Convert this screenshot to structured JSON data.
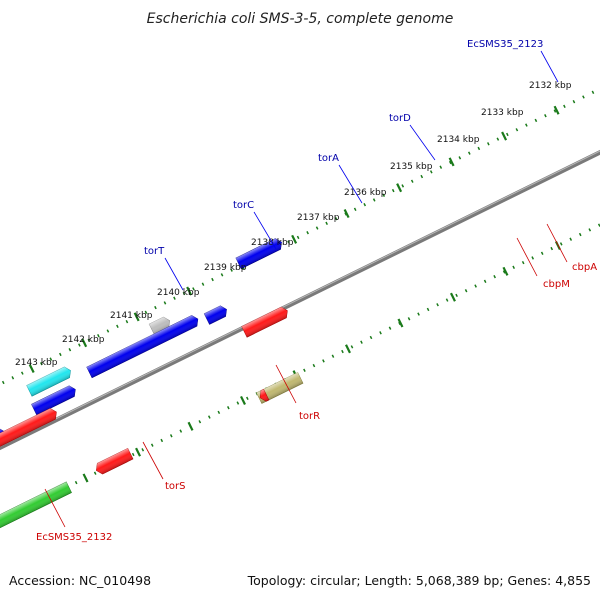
{
  "title": "Escherichia coli SMS-3-5, complete genome",
  "footer": {
    "accession": "Accession: NC_010498",
    "summary": "Topology: circular; Length: 5,068,389 bp; Genes: 4,855"
  },
  "colors": {
    "red": "#ff1a1a",
    "blue": "#0000ee",
    "cyan": "#22e6ee",
    "teal": "#10b8c0",
    "green": "#33cc33",
    "gray": "#bdbdbd",
    "khaki": "#c0b870",
    "backbone": "#7a7a7a",
    "tick": "#1a7a1a",
    "plus_label": "#0000aa",
    "minus_label": "#cc0000"
  },
  "ruler": [
    {
      "label": "2132 kbp",
      "kbp": 2132
    },
    {
      "label": "2133 kbp",
      "kbp": 2133
    },
    {
      "label": "2134 kbp",
      "kbp": 2134
    },
    {
      "label": "2135 kbp",
      "kbp": 2135
    },
    {
      "label": "2136 kbp",
      "kbp": 2136
    },
    {
      "label": "2137 kbp",
      "kbp": 2137
    },
    {
      "label": "2138 kbp",
      "kbp": 2138
    },
    {
      "label": "2139 kbp",
      "kbp": 2139
    },
    {
      "label": "2140 kbp",
      "kbp": 2140
    },
    {
      "label": "2141 kbp",
      "kbp": 2141
    },
    {
      "label": "2142 kbp",
      "kbp": 2142
    },
    {
      "label": "2143 kbp",
      "kbp": 2143
    }
  ],
  "plus_labels": [
    {
      "name": "EcSMS35_2123"
    },
    {
      "name": "torD"
    },
    {
      "name": "torA"
    },
    {
      "name": "torC"
    },
    {
      "name": "torT"
    }
  ],
  "minus_labels": [
    {
      "name": "cbpA"
    },
    {
      "name": "cbpM"
    },
    {
      "name": "torR"
    },
    {
      "name": "torS"
    },
    {
      "name": "EcSMS35_2132"
    }
  ]
}
